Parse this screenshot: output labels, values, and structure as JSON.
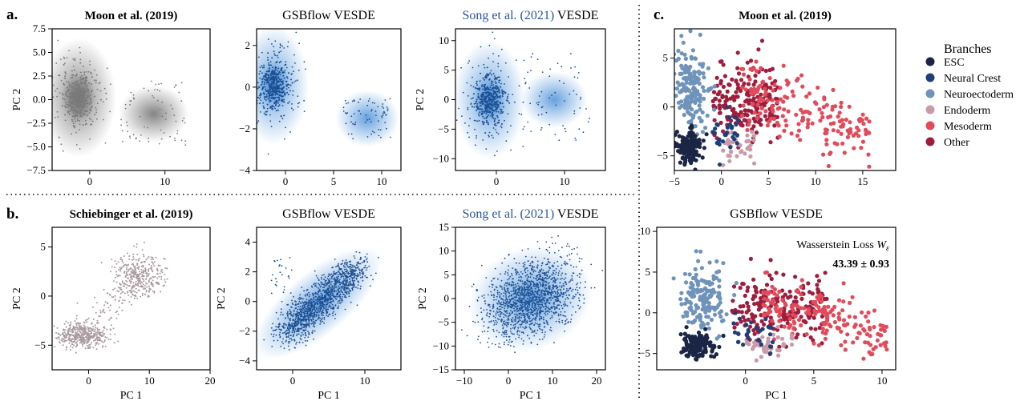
{
  "panel_labels": {
    "a": "a.",
    "b": "b.",
    "c": "c."
  },
  "colors": {
    "grey_points": "#7a7a7a",
    "grey_density": "#6e6e6e",
    "mauve_points": "#a89a9f",
    "blue_points": "#1d4f91",
    "blue_density": "#4a90d9",
    "cite_blue": "#2a56a0"
  },
  "chart_data": [
    {
      "type": "scatter",
      "panel": "a",
      "variant": "density-grey",
      "title": "Moon et al. (2019)",
      "xlabel": "",
      "ylabel": "PC 2",
      "xlim": [
        -5,
        16
      ],
      "ylim": [
        -7.5,
        7.5
      ],
      "xticks": [
        0,
        10
      ],
      "yticks": [
        -7.5,
        -5.0,
        -2.5,
        0.0,
        2.5,
        5.0,
        7.5
      ],
      "ytick_labels": [
        "−7.5",
        "−5.0",
        "−2.5",
        "0.0",
        "2.5",
        "5.0",
        "7.5"
      ],
      "core": [
        -1.5,
        0.2
      ],
      "tail": {
        "x": [
          4,
          13
        ],
        "y": [
          -5,
          2
        ]
      }
    },
    {
      "type": "scatter",
      "panel": "a",
      "variant": "density-blue",
      "title": "GSBflow VESDE",
      "xlabel": "",
      "ylabel": "",
      "xlim": [
        -3,
        12
      ],
      "ylim": [
        -4,
        2.8
      ],
      "xticks": [
        0,
        5,
        10
      ],
      "yticks": [
        -4,
        -2,
        0,
        2
      ],
      "ytick_labels": [
        "−4",
        "−2",
        "0",
        "2"
      ],
      "core": [
        -1.2,
        0.1
      ],
      "tail": {
        "x": [
          6,
          11
        ],
        "y": [
          -2.5,
          -0.5
        ]
      }
    },
    {
      "type": "scatter",
      "panel": "a",
      "variant": "density-blue",
      "title_cite": "Song et al. (2021)",
      "title_rest": " VESDE",
      "xlabel": "",
      "ylabel": "PC 2",
      "xlim": [
        -6,
        16
      ],
      "ylim": [
        -12,
        12
      ],
      "xticks": [
        0,
        10
      ],
      "yticks": [
        -10,
        -5,
        0,
        5,
        10
      ],
      "ytick_labels": [
        "−10",
        "−5",
        "0",
        "5",
        "10"
      ],
      "core": [
        -1,
        0
      ],
      "tail": {
        "x": [
          3,
          14
        ],
        "y": [
          -8,
          8
        ]
      }
    },
    {
      "type": "scatter",
      "panel": "b",
      "variant": "mauve",
      "title": "Schiebinger et al. (2019)",
      "xlabel": "PC 1",
      "ylabel": "PC 2",
      "xlim": [
        -6,
        20
      ],
      "ylim": [
        -7.5,
        7
      ],
      "xticks": [
        0,
        10,
        20
      ],
      "yticks": [
        -5,
        0,
        5
      ],
      "ytick_labels": [
        "−5",
        "0",
        "5"
      ],
      "clusters": [
        [
          -1,
          -4
        ],
        [
          8,
          2
        ]
      ]
    },
    {
      "type": "scatter",
      "panel": "b",
      "variant": "density-blue",
      "title": "GSBflow VESDE",
      "xlabel": "PC 1",
      "ylabel": "PC 2",
      "xlim": [
        -5,
        15
      ],
      "ylim": [
        -4.6,
        5
      ],
      "xticks": [
        0,
        10
      ],
      "yticks": [
        -4,
        -2,
        0,
        2,
        4
      ],
      "ytick_labels": [
        "−4",
        "−2",
        "0",
        "2",
        "4"
      ],
      "clusters": [
        [
          0,
          -1.7
        ],
        [
          7,
          1.5
        ]
      ]
    },
    {
      "type": "scatter",
      "panel": "b",
      "variant": "density-blue",
      "title_cite": "Song et al. (2021)",
      "title_rest": " VESDE",
      "xlabel": "PC 1",
      "ylabel": "PC 2",
      "xlim": [
        -12,
        22
      ],
      "ylim": [
        -15,
        15
      ],
      "xticks": [
        -10,
        0,
        10,
        20
      ],
      "xtick_labels": [
        "−10",
        "0",
        "10",
        "20"
      ],
      "yticks": [
        -15,
        -10,
        -5,
        0,
        5,
        10,
        15
      ],
      "ytick_labels": [
        "−15",
        "−10",
        "−5",
        "0",
        "5",
        "10",
        "15"
      ],
      "clusters": [
        [
          5,
          0
        ]
      ]
    },
    {
      "type": "scatter",
      "panel": "c",
      "variant": "branches",
      "title": "Moon et al. (2019)",
      "xlabel": "",
      "ylabel": "",
      "xlim": [
        -5,
        18.5
      ],
      "ylim": [
        -6.5,
        8
      ],
      "xticks": [
        -5,
        0,
        5,
        10,
        15
      ],
      "xtick_labels": [
        "−5",
        "0",
        "5",
        "10",
        "15"
      ],
      "yticks": [
        -5,
        0,
        5
      ],
      "ytick_labels": [
        "−5",
        "0",
        "5"
      ]
    },
    {
      "type": "scatter",
      "panel": "c",
      "variant": "branches",
      "title": "GSBflow VESDE",
      "xlabel": "PC 1",
      "ylabel": "",
      "xlim": [
        -6.5,
        11
      ],
      "ylim": [
        -7,
        10.5
      ],
      "xticks": [
        0,
        5,
        10
      ],
      "yticks": [
        -5,
        0,
        5,
        10
      ],
      "ytick_labels": [
        "−5",
        "0",
        "5",
        "10"
      ],
      "annotation": {
        "line1": "Wasserstein Loss",
        "symbol": "W",
        "subscript": "ε",
        "line2": "43.39 ± 0.93"
      }
    }
  ],
  "legend": {
    "title": "Branches",
    "entries": [
      {
        "label": "ESC",
        "color": "#1b2545"
      },
      {
        "label": "Neural Crest",
        "color": "#1f3f7a"
      },
      {
        "label": "Neuroectoderm",
        "color": "#6f93ba"
      },
      {
        "label": "Endoderm",
        "color": "#c99aa8"
      },
      {
        "label": "Mesoderm",
        "color": "#e14b5a"
      },
      {
        "label": "Other",
        "color": "#9e1d3c"
      }
    ]
  }
}
